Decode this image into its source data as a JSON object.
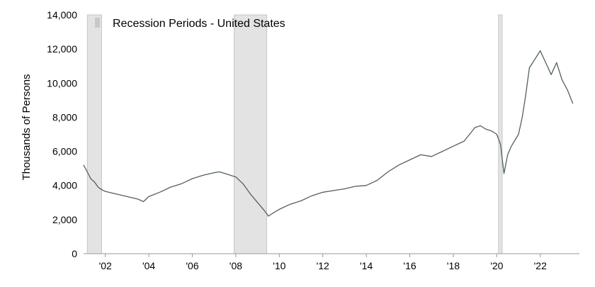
{
  "chart_data": {
    "type": "line",
    "title": "",
    "xlabel": "",
    "ylabel": "Thousands of Persons",
    "xlim": [
      2001.0,
      2023.8
    ],
    "ylim": [
      0,
      14000
    ],
    "y_ticks": [
      0,
      2000,
      4000,
      6000,
      8000,
      10000,
      12000,
      14000
    ],
    "y_tick_labels": [
      "0",
      "2,000",
      "4,000",
      "6,000",
      "8,000",
      "10,000",
      "12,000",
      "14,000"
    ],
    "x_ticks": [
      2002,
      2004,
      2006,
      2008,
      2010,
      2012,
      2014,
      2016,
      2018,
      2020,
      2022
    ],
    "x_tick_labels": [
      "'02",
      "'04",
      "'06",
      "'08",
      "'10",
      "'12",
      "'14",
      "'16",
      "'18",
      "'20",
      "'22"
    ],
    "legend": {
      "label": "Recession Periods - United States",
      "placement": "top-left"
    },
    "grid": false,
    "colors": {
      "line": "#52615d",
      "recession": "#e3e3e3",
      "recession_edge": "#bdbdbd",
      "axis": "#999999"
    },
    "recessions": [
      {
        "start": 2001.17,
        "end": 2001.83
      },
      {
        "start": 2007.92,
        "end": 2009.42
      },
      {
        "start": 2020.08,
        "end": 2020.25
      }
    ],
    "series": [
      {
        "x": [
          2001.0,
          2001.17,
          2001.33,
          2001.5,
          2001.67,
          2001.83,
          2002.0,
          2002.5,
          2003.0,
          2003.5,
          2003.75,
          2004.0,
          2004.5,
          2005.0,
          2005.5,
          2006.0,
          2006.5,
          2007.0,
          2007.25,
          2007.5,
          2008.0,
          2008.33,
          2008.67,
          2009.0,
          2009.33,
          2009.5,
          2009.67,
          2010.0,
          2010.5,
          2011.0,
          2011.5,
          2012.0,
          2012.5,
          2013.0,
          2013.5,
          2014.0,
          2014.5,
          2015.0,
          2015.5,
          2016.0,
          2016.5,
          2017.0,
          2017.5,
          2018.0,
          2018.5,
          2019.0,
          2019.25,
          2019.5,
          2019.75,
          2020.0,
          2020.17,
          2020.33,
          2020.5,
          2020.67,
          2021.0,
          2021.17,
          2021.33,
          2021.5,
          2021.75,
          2022.0,
          2022.25,
          2022.5,
          2022.75,
          2023.0,
          2023.25,
          2023.5
        ],
        "y": [
          5200,
          4800,
          4400,
          4200,
          3900,
          3750,
          3650,
          3500,
          3350,
          3200,
          3050,
          3350,
          3600,
          3900,
          4100,
          4400,
          4600,
          4750,
          4800,
          4700,
          4500,
          4100,
          3500,
          3000,
          2500,
          2200,
          2350,
          2600,
          2900,
          3100,
          3400,
          3600,
          3700,
          3800,
          3950,
          4000,
          4300,
          4800,
          5200,
          5500,
          5800,
          5700,
          6000,
          6300,
          6600,
          7400,
          7500,
          7300,
          7200,
          7000,
          6400,
          4700,
          5800,
          6300,
          7000,
          8000,
          9300,
          10900,
          11400,
          11900,
          11200,
          10500,
          11200,
          10200,
          9600,
          8800
        ]
      }
    ]
  }
}
